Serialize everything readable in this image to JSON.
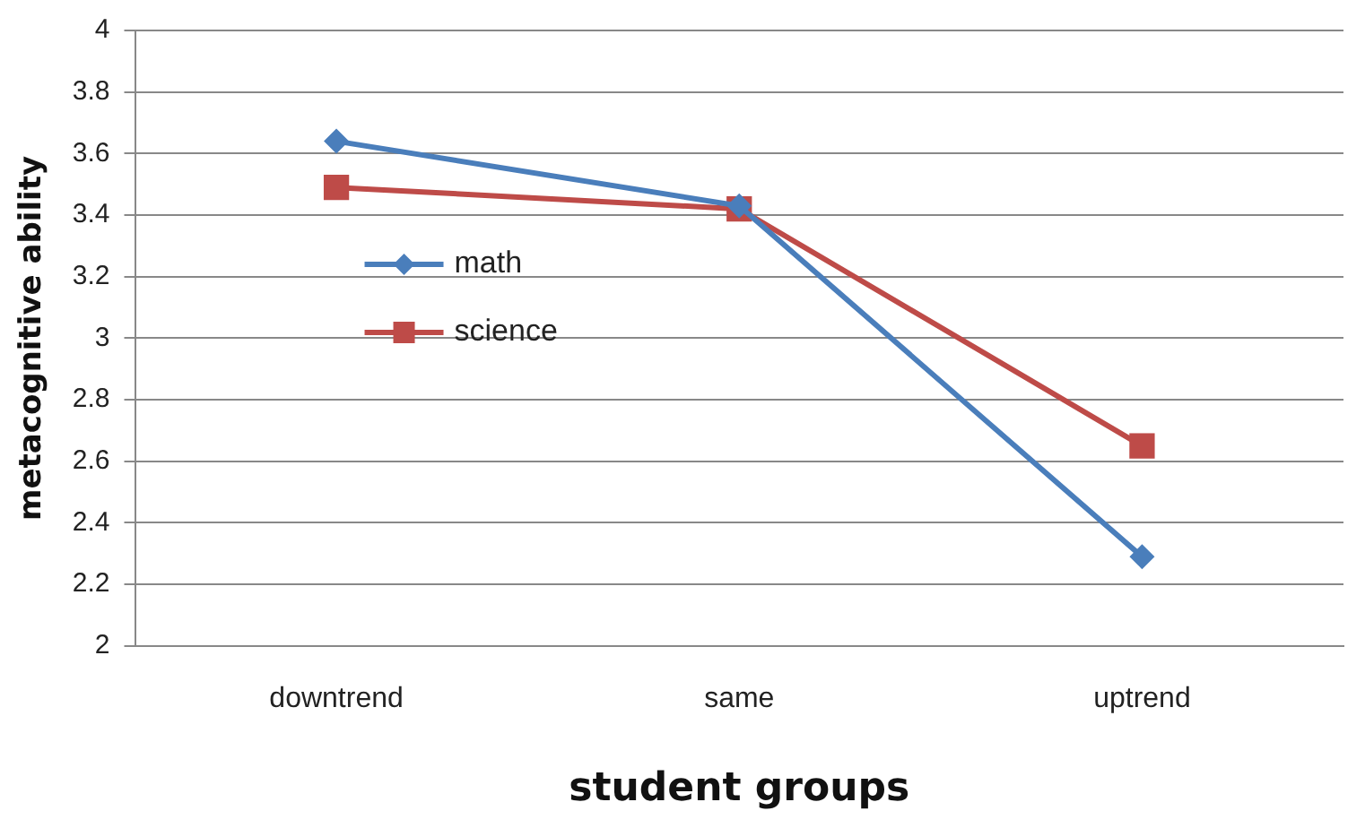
{
  "chart_data": {
    "type": "line",
    "xlabel": "student groups",
    "ylabel": "metacognitive ability",
    "categories": [
      "downtrend",
      "same",
      "uptrend"
    ],
    "series": [
      {
        "name": "math",
        "color": "#4a7ebb",
        "marker": "diamond",
        "values": [
          3.64,
          3.43,
          2.29
        ]
      },
      {
        "name": "science",
        "color": "#be4b48",
        "marker": "square",
        "values": [
          3.49,
          3.42,
          2.65
        ]
      }
    ],
    "ylim": [
      2,
      4
    ],
    "yticks": [
      2,
      2.2,
      2.4,
      2.6,
      2.8,
      3,
      3.2,
      3.4,
      3.6,
      3.8,
      4
    ],
    "grid": "y",
    "legend": "left",
    "line_style": "solid"
  }
}
